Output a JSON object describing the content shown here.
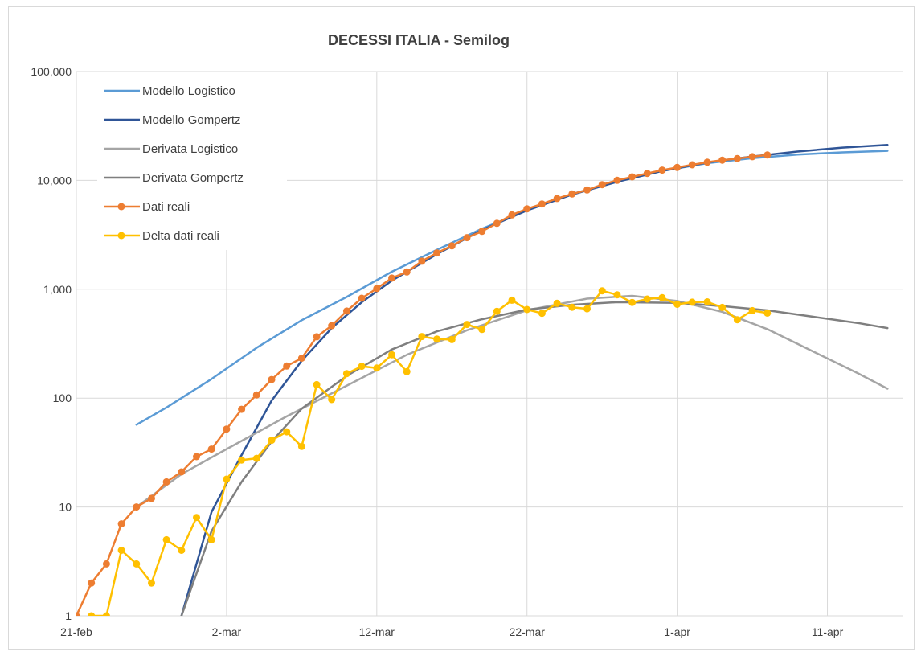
{
  "chart_data": {
    "type": "line",
    "title": "DECESSI ITALIA - Semilog",
    "y_scale": "log",
    "ylim": [
      1,
      100000
    ],
    "y_ticks": [
      1,
      10,
      100,
      1000,
      10000,
      100000
    ],
    "y_tick_labels": [
      "1",
      "10",
      "100",
      "1,000",
      "10,000",
      "100,000"
    ],
    "xlim": [
      "2020-02-21",
      "2020-04-16"
    ],
    "x_ticks": [
      "2020-02-21",
      "2020-03-02",
      "2020-03-12",
      "2020-03-22",
      "2020-04-01",
      "2020-04-11"
    ],
    "x_tick_labels": [
      "21-feb",
      "2-mar",
      "12-mar",
      "22-mar",
      "1-apr",
      "11-apr"
    ],
    "grid": true,
    "legend": "top-left",
    "series": [
      {
        "name": "Modello Logistico",
        "color": "#5b9bd5",
        "markers": false,
        "points": [
          [
            "2020-02-25",
            57
          ],
          [
            "2020-02-27",
            82
          ],
          [
            "2020-03-01",
            150
          ],
          [
            "2020-03-04",
            290
          ],
          [
            "2020-03-07",
            520
          ],
          [
            "2020-03-10",
            850
          ],
          [
            "2020-03-13",
            1450
          ],
          [
            "2020-03-16",
            2300
          ],
          [
            "2020-03-19",
            3600
          ],
          [
            "2020-03-22",
            5300
          ],
          [
            "2020-03-25",
            7500
          ],
          [
            "2020-03-28",
            9800
          ],
          [
            "2020-03-31",
            12200
          ],
          [
            "2020-04-03",
            14400
          ],
          [
            "2020-04-06",
            16000
          ],
          [
            "2020-04-09",
            17300
          ],
          [
            "2020-04-12",
            18100
          ],
          [
            "2020-04-15",
            18700
          ]
        ]
      },
      {
        "name": "Modello Gompertz",
        "color": "#2f5597",
        "markers": false,
        "points": [
          [
            "2020-02-28",
            1
          ],
          [
            "2020-03-01",
            9
          ],
          [
            "2020-03-03",
            30
          ],
          [
            "2020-03-05",
            95
          ],
          [
            "2020-03-07",
            220
          ],
          [
            "2020-03-09",
            440
          ],
          [
            "2020-03-11",
            760
          ],
          [
            "2020-03-13",
            1200
          ],
          [
            "2020-03-16",
            2100
          ],
          [
            "2020-03-19",
            3500
          ],
          [
            "2020-03-22",
            5300
          ],
          [
            "2020-03-25",
            7400
          ],
          [
            "2020-03-28",
            9700
          ],
          [
            "2020-03-31",
            12200
          ],
          [
            "2020-04-03",
            14600
          ],
          [
            "2020-04-06",
            16600
          ],
          [
            "2020-04-09",
            18400
          ],
          [
            "2020-04-12",
            20000
          ],
          [
            "2020-04-15",
            21200
          ]
        ]
      },
      {
        "name": "Derivata Logistico",
        "color": "#a5a5a5",
        "markers": false,
        "points": [
          [
            "2020-02-25",
            10
          ],
          [
            "2020-02-28",
            20
          ],
          [
            "2020-03-02",
            34
          ],
          [
            "2020-03-06",
            68
          ],
          [
            "2020-03-10",
            130
          ],
          [
            "2020-03-14",
            250
          ],
          [
            "2020-03-18",
            420
          ],
          [
            "2020-03-22",
            640
          ],
          [
            "2020-03-26",
            820
          ],
          [
            "2020-03-29",
            870
          ],
          [
            "2020-04-01",
            780
          ],
          [
            "2020-04-04",
            620
          ],
          [
            "2020-04-07",
            430
          ],
          [
            "2020-04-10",
            270
          ],
          [
            "2020-04-13",
            170
          ],
          [
            "2020-04-15",
            122
          ]
        ]
      },
      {
        "name": "Derivata Gompertz",
        "color": "#7f7f7f",
        "markers": false,
        "points": [
          [
            "2020-02-28",
            1
          ],
          [
            "2020-03-01",
            6
          ],
          [
            "2020-03-03",
            17
          ],
          [
            "2020-03-05",
            40
          ],
          [
            "2020-03-07",
            80
          ],
          [
            "2020-03-10",
            160
          ],
          [
            "2020-03-13",
            280
          ],
          [
            "2020-03-16",
            410
          ],
          [
            "2020-03-19",
            530
          ],
          [
            "2020-03-22",
            650
          ],
          [
            "2020-03-25",
            720
          ],
          [
            "2020-03-28",
            760
          ],
          [
            "2020-04-01",
            750
          ],
          [
            "2020-04-04",
            700
          ],
          [
            "2020-04-07",
            640
          ],
          [
            "2020-04-10",
            560
          ],
          [
            "2020-04-13",
            490
          ],
          [
            "2020-04-15",
            440
          ]
        ]
      },
      {
        "name": "Dati reali",
        "color": "#ed7d31",
        "markers": true,
        "points": [
          [
            "2020-02-21",
            1
          ],
          [
            "2020-02-22",
            2
          ],
          [
            "2020-02-23",
            3
          ],
          [
            "2020-02-24",
            7
          ],
          [
            "2020-02-25",
            10
          ],
          [
            "2020-02-26",
            12
          ],
          [
            "2020-02-27",
            17
          ],
          [
            "2020-02-28",
            21
          ],
          [
            "2020-02-29",
            29
          ],
          [
            "2020-03-01",
            34
          ],
          [
            "2020-03-02",
            52
          ],
          [
            "2020-03-03",
            79
          ],
          [
            "2020-03-04",
            107
          ],
          [
            "2020-03-05",
            148
          ],
          [
            "2020-03-06",
            197
          ],
          [
            "2020-03-07",
            233
          ],
          [
            "2020-03-08",
            366
          ],
          [
            "2020-03-09",
            463
          ],
          [
            "2020-03-10",
            631
          ],
          [
            "2020-03-11",
            827
          ],
          [
            "2020-03-12",
            1016
          ],
          [
            "2020-03-13",
            1266
          ],
          [
            "2020-03-14",
            1441
          ],
          [
            "2020-03-15",
            1809
          ],
          [
            "2020-03-16",
            2158
          ],
          [
            "2020-03-17",
            2503
          ],
          [
            "2020-03-18",
            2978
          ],
          [
            "2020-03-19",
            3405
          ],
          [
            "2020-03-20",
            4032
          ],
          [
            "2020-03-21",
            4825
          ],
          [
            "2020-03-22",
            5476
          ],
          [
            "2020-03-23",
            6077
          ],
          [
            "2020-03-24",
            6820
          ],
          [
            "2020-03-25",
            7503
          ],
          [
            "2020-03-26",
            8165
          ],
          [
            "2020-03-27",
            9134
          ],
          [
            "2020-03-28",
            10023
          ],
          [
            "2020-03-29",
            10779
          ],
          [
            "2020-03-30",
            11591
          ],
          [
            "2020-03-31",
            12428
          ],
          [
            "2020-04-01",
            13155
          ],
          [
            "2020-04-02",
            13915
          ],
          [
            "2020-04-03",
            14681
          ],
          [
            "2020-04-04",
            15362
          ],
          [
            "2020-04-05",
            15887
          ],
          [
            "2020-04-06",
            16523
          ],
          [
            "2020-04-07",
            17127
          ]
        ]
      },
      {
        "name": "Delta dati reali",
        "color": "#ffc000",
        "markers": true,
        "points": [
          [
            "2020-02-22",
            1
          ],
          [
            "2020-02-23",
            1
          ],
          [
            "2020-02-24",
            4
          ],
          [
            "2020-02-25",
            3
          ],
          [
            "2020-02-26",
            2
          ],
          [
            "2020-02-27",
            5
          ],
          [
            "2020-02-28",
            4
          ],
          [
            "2020-02-29",
            8
          ],
          [
            "2020-03-01",
            5
          ],
          [
            "2020-03-02",
            18
          ],
          [
            "2020-03-03",
            27
          ],
          [
            "2020-03-04",
            28
          ],
          [
            "2020-03-05",
            41
          ],
          [
            "2020-03-06",
            49
          ],
          [
            "2020-03-07",
            36
          ],
          [
            "2020-03-08",
            133
          ],
          [
            "2020-03-09",
            97
          ],
          [
            "2020-03-10",
            168
          ],
          [
            "2020-03-11",
            196
          ],
          [
            "2020-03-12",
            189
          ],
          [
            "2020-03-13",
            250
          ],
          [
            "2020-03-14",
            175
          ],
          [
            "2020-03-15",
            368
          ],
          [
            "2020-03-16",
            349
          ],
          [
            "2020-03-17",
            345
          ],
          [
            "2020-03-18",
            475
          ],
          [
            "2020-03-19",
            427
          ],
          [
            "2020-03-20",
            627
          ],
          [
            "2020-03-21",
            793
          ],
          [
            "2020-03-22",
            651
          ],
          [
            "2020-03-23",
            601
          ],
          [
            "2020-03-24",
            743
          ],
          [
            "2020-03-25",
            683
          ],
          [
            "2020-03-26",
            662
          ],
          [
            "2020-03-27",
            969
          ],
          [
            "2020-03-28",
            889
          ],
          [
            "2020-03-29",
            756
          ],
          [
            "2020-03-30",
            812
          ],
          [
            "2020-03-31",
            837
          ],
          [
            "2020-04-01",
            727
          ],
          [
            "2020-04-02",
            760
          ],
          [
            "2020-04-03",
            766
          ],
          [
            "2020-04-04",
            681
          ],
          [
            "2020-04-05",
            525
          ],
          [
            "2020-04-06",
            636
          ],
          [
            "2020-04-07",
            604
          ]
        ]
      }
    ]
  }
}
